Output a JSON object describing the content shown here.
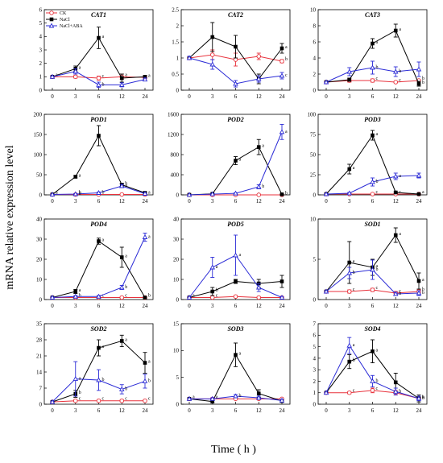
{
  "figure": {
    "ylabel": "mRNA relative expression level",
    "xlabel": "Time ( h )",
    "legend": [
      {
        "name": "CK",
        "color": "#e8323c",
        "marker": "circle-open"
      },
      {
        "name": "NaCl",
        "color": "#000000",
        "marker": "square-filled"
      },
      {
        "name": "NaCl+ABA",
        "color": "#2b2bd6",
        "marker": "triangle-open"
      }
    ]
  },
  "chart_data": [
    {
      "type": "line",
      "title": "CAT1",
      "categories": [
        "0",
        "3",
        "6",
        "12",
        "24"
      ],
      "ylim": [
        0,
        6
      ],
      "yticks": [
        0,
        1,
        2,
        3,
        4,
        5,
        6
      ],
      "series": [
        {
          "name": "CK",
          "values": [
            1,
            1,
            0.9,
            1,
            0.95
          ],
          "errors": [
            0.05,
            0.1,
            0.15,
            0.2,
            0.1
          ],
          "letters": [
            "a",
            "",
            "c",
            "a",
            ""
          ]
        },
        {
          "name": "NaCl",
          "values": [
            1,
            1.6,
            3.9,
            0.9,
            1.0
          ],
          "errors": [
            0.05,
            0.2,
            0.8,
            0.3,
            0.1
          ],
          "letters": [
            "",
            "a",
            "a",
            "",
            "a"
          ]
        },
        {
          "name": "NaCl+ABA",
          "values": [
            1,
            1.4,
            0.4,
            0.4,
            0.8
          ],
          "errors": [
            0.05,
            0.2,
            0.2,
            0.15,
            0.1
          ],
          "letters": [
            "",
            "",
            "b",
            "",
            ""
          ]
        }
      ]
    },
    {
      "type": "line",
      "title": "CAT2",
      "categories": [
        "0",
        "3",
        "6",
        "12",
        "24"
      ],
      "ylim": [
        0,
        2.5
      ],
      "yticks": [
        0,
        0.5,
        1,
        1.5,
        2,
        2.5
      ],
      "series": [
        {
          "name": "CK",
          "values": [
            1,
            1.1,
            0.95,
            1.05,
            0.9
          ],
          "errors": [
            0.05,
            0.15,
            0.2,
            0.1,
            0.05
          ],
          "letters": [
            "",
            "",
            "",
            "",
            "b"
          ]
        },
        {
          "name": "NaCl",
          "values": [
            1,
            1.65,
            1.35,
            0.35,
            1.3
          ],
          "errors": [
            0.05,
            0.45,
            0.35,
            0.15,
            0.15
          ],
          "letters": [
            "",
            "",
            "",
            "",
            "a"
          ]
        },
        {
          "name": "NaCl+ABA",
          "values": [
            1,
            0.8,
            0.2,
            0.35,
            0.45
          ],
          "errors": [
            0.05,
            0.15,
            0.1,
            0.1,
            0.1
          ],
          "letters": [
            "",
            "",
            "",
            "",
            "c"
          ]
        }
      ]
    },
    {
      "type": "line",
      "title": "CAT3",
      "categories": [
        "0",
        "3",
        "6",
        "12",
        "24"
      ],
      "ylim": [
        0,
        10
      ],
      "yticks": [
        0,
        2,
        4,
        6,
        8,
        10
      ],
      "series": [
        {
          "name": "CK",
          "values": [
            1,
            1.2,
            1.2,
            1.0,
            1.2
          ],
          "errors": [
            0.05,
            0.2,
            0.2,
            0.1,
            0.1
          ],
          "letters": [
            "",
            "",
            "c",
            "c",
            "b"
          ]
        },
        {
          "name": "NaCl",
          "values": [
            1,
            1.3,
            5.8,
            7.4,
            0.8
          ],
          "errors": [
            0.05,
            0.2,
            0.6,
            0.8,
            0.3
          ],
          "letters": [
            "",
            "",
            "a",
            "a",
            "b"
          ]
        },
        {
          "name": "NaCl+ABA",
          "values": [
            1,
            2.3,
            2.8,
            2.3,
            2.6
          ],
          "errors": [
            0.05,
            0.5,
            0.8,
            0.6,
            0.9
          ],
          "letters": [
            "",
            "",
            "b",
            "b",
            ""
          ]
        }
      ]
    },
    {
      "type": "line",
      "title": "POD1",
      "categories": [
        "0",
        "3",
        "6",
        "12",
        "24"
      ],
      "ylim": [
        0,
        200
      ],
      "yticks": [
        0,
        50,
        100,
        150,
        200
      ],
      "series": [
        {
          "name": "CK",
          "values": [
            1,
            1,
            1,
            1,
            1
          ],
          "errors": [
            0.5,
            0.5,
            0.5,
            0.5,
            0.5
          ],
          "letters": [
            "a",
            "b",
            "",
            "",
            "a"
          ]
        },
        {
          "name": "NaCl",
          "values": [
            1,
            45,
            147,
            25,
            5
          ],
          "errors": [
            0.5,
            3,
            25,
            4,
            2
          ],
          "letters": [
            "",
            "a",
            "",
            "b",
            ""
          ]
        },
        {
          "name": "NaCl+ABA",
          "values": [
            1,
            2,
            5,
            22,
            3
          ],
          "errors": [
            0.5,
            1,
            2,
            4,
            1
          ],
          "letters": [
            "",
            "b",
            "b",
            "a",
            ""
          ]
        }
      ]
    },
    {
      "type": "line",
      "title": "POD2",
      "categories": [
        "0",
        "3",
        "6",
        "12",
        "24"
      ],
      "ylim": [
        0,
        1600
      ],
      "yticks": [
        0,
        400,
        800,
        1200,
        1600
      ],
      "series": [
        {
          "name": "CK",
          "values": [
            1,
            1,
            1,
            1,
            1
          ],
          "errors": [
            5,
            5,
            5,
            5,
            5
          ],
          "letters": [
            "",
            "",
            "",
            "",
            ""
          ]
        },
        {
          "name": "NaCl",
          "values": [
            1,
            20,
            680,
            950,
            10
          ],
          "errors": [
            5,
            10,
            80,
            150,
            5
          ],
          "letters": [
            "",
            "",
            "a",
            "a",
            "b"
          ]
        },
        {
          "name": "NaCl+ABA",
          "values": [
            1,
            15,
            30,
            160,
            1250
          ],
          "errors": [
            5,
            5,
            10,
            40,
            150
          ],
          "letters": [
            "",
            "",
            "",
            "b",
            "a"
          ]
        }
      ]
    },
    {
      "type": "line",
      "title": "POD3",
      "categories": [
        "0",
        "3",
        "6",
        "12",
        "24"
      ],
      "ylim": [
        0,
        100
      ],
      "yticks": [
        0,
        25,
        50,
        75,
        100
      ],
      "series": [
        {
          "name": "CK",
          "values": [
            1,
            1,
            1,
            1,
            1
          ],
          "errors": [
            0.5,
            0.5,
            0.5,
            0.5,
            0.5
          ],
          "letters": [
            "",
            "",
            "c",
            "c",
            "a"
          ]
        },
        {
          "name": "NaCl",
          "values": [
            1,
            32,
            74,
            3,
            1
          ],
          "errors": [
            0.5,
            6,
            6,
            1,
            0.5
          ],
          "letters": [
            "",
            "a",
            "a",
            "",
            ""
          ]
        },
        {
          "name": "NaCl+ABA",
          "values": [
            1,
            2,
            16,
            23,
            24
          ],
          "errors": [
            0.5,
            1,
            5,
            4,
            3
          ],
          "letters": [
            "",
            "",
            "b",
            "a",
            ""
          ]
        }
      ]
    },
    {
      "type": "line",
      "title": "POD4",
      "categories": [
        "0",
        "3",
        "6",
        "12",
        "24"
      ],
      "ylim": [
        0,
        40
      ],
      "yticks": [
        0,
        10,
        20,
        30,
        40
      ],
      "series": [
        {
          "name": "CK",
          "values": [
            1,
            1,
            1,
            1,
            1
          ],
          "errors": [
            0.3,
            0.3,
            0.3,
            0.3,
            0.3
          ],
          "letters": [
            "",
            "b",
            "c",
            "c",
            "b"
          ]
        },
        {
          "name": "NaCl",
          "values": [
            1,
            4,
            29,
            21,
            1
          ],
          "errors": [
            0.3,
            1,
            1.5,
            5,
            0.5
          ],
          "letters": [
            "",
            "a",
            "a",
            "a",
            ""
          ]
        },
        {
          "name": "NaCl+ABA",
          "values": [
            1,
            1.5,
            1.5,
            6,
            31
          ],
          "errors": [
            0.3,
            0.5,
            0.5,
            1,
            2
          ],
          "letters": [
            "",
            "",
            "",
            "b",
            "a"
          ]
        }
      ]
    },
    {
      "type": "line",
      "title": "POD5",
      "categories": [
        "0",
        "3",
        "6",
        "12",
        "24"
      ],
      "ylim": [
        0,
        40
      ],
      "yticks": [
        0,
        10,
        20,
        30,
        40
      ],
      "series": [
        {
          "name": "CK",
          "values": [
            1,
            1,
            1.5,
            1,
            1
          ],
          "errors": [
            0.3,
            0.3,
            0.5,
            0.3,
            0.3
          ],
          "letters": [
            "a",
            "c",
            "",
            "",
            ""
          ]
        },
        {
          "name": "NaCl",
          "values": [
            1,
            4,
            9,
            8,
            9
          ],
          "errors": [
            0.3,
            2,
            1,
            2,
            3
          ],
          "letters": [
            "",
            "b",
            "",
            "",
            ""
          ]
        },
        {
          "name": "NaCl+ABA",
          "values": [
            1,
            16,
            22,
            6,
            1
          ],
          "errors": [
            0.3,
            5,
            10,
            2,
            0.5
          ],
          "letters": [
            "",
            "a",
            "a",
            "",
            ""
          ]
        }
      ]
    },
    {
      "type": "line",
      "title": "SOD1",
      "categories": [
        "0",
        "3",
        "6",
        "12",
        "24"
      ],
      "ylim": [
        0,
        10
      ],
      "yticks": [
        0,
        5,
        10
      ],
      "series": [
        {
          "name": "CK",
          "values": [
            1,
            1,
            1.2,
            0.8,
            1.0
          ],
          "errors": [
            0.1,
            0.2,
            0.2,
            0.2,
            0.2
          ],
          "letters": [
            "",
            "c",
            "c",
            "c",
            "b"
          ]
        },
        {
          "name": "NaCl",
          "values": [
            1,
            4.6,
            4.0,
            8.0,
            2.3
          ],
          "errors": [
            0.1,
            2.6,
            1.0,
            0.9,
            1.0
          ],
          "letters": [
            "",
            "a",
            "a",
            "a",
            "a"
          ]
        },
        {
          "name": "NaCl+ABA",
          "values": [
            1,
            3.3,
            3.7,
            0.7,
            0.8
          ],
          "errors": [
            0.1,
            0.7,
            1.2,
            0.2,
            0.3
          ],
          "letters": [
            "",
            "b",
            "b",
            "b",
            "b"
          ]
        }
      ]
    },
    {
      "type": "line",
      "title": "SOD2",
      "categories": [
        "0",
        "3",
        "6",
        "12",
        "24"
      ],
      "ylim": [
        0,
        35
      ],
      "yticks": [
        0,
        7,
        14,
        21,
        28,
        35
      ],
      "series": [
        {
          "name": "CK",
          "values": [
            1,
            1.5,
            1.5,
            1.5,
            1.5
          ],
          "errors": [
            0.3,
            0.5,
            0.5,
            0.5,
            0.5
          ],
          "letters": [
            "",
            "c",
            "c",
            "c",
            "c"
          ]
        },
        {
          "name": "NaCl",
          "values": [
            1,
            4.5,
            24.5,
            27.5,
            18
          ],
          "errors": [
            0.3,
            1.5,
            3.5,
            2.5,
            4.5
          ],
          "letters": [
            "",
            "b",
            "a",
            "a",
            "a"
          ]
        },
        {
          "name": "NaCl+ABA",
          "values": [
            1,
            11,
            10.5,
            6.5,
            10
          ],
          "errors": [
            0.3,
            7.5,
            4.5,
            2,
            3
          ],
          "letters": [
            "",
            "a",
            "b",
            "b",
            "b"
          ]
        }
      ]
    },
    {
      "type": "line",
      "title": "SOD3",
      "categories": [
        "0",
        "3",
        "6",
        "12",
        "24"
      ],
      "ylim": [
        0,
        15
      ],
      "yticks": [
        0,
        5,
        10,
        15
      ],
      "series": [
        {
          "name": "CK",
          "values": [
            1,
            1,
            1,
            1,
            1
          ],
          "errors": [
            0.1,
            0.1,
            0.1,
            0.1,
            0.1
          ],
          "letters": [
            "a",
            "a",
            "",
            "",
            ""
          ]
        },
        {
          "name": "NaCl",
          "values": [
            1,
            0.5,
            9.2,
            2,
            0.6
          ],
          "errors": [
            0.1,
            0.2,
            2.2,
            0.7,
            0.2
          ],
          "letters": [
            "",
            "",
            "a",
            "",
            ""
          ]
        },
        {
          "name": "NaCl+ABA",
          "values": [
            1,
            1,
            1.5,
            1.2,
            0.7
          ],
          "errors": [
            0.1,
            0.2,
            0.3,
            0.3,
            0.2
          ],
          "letters": [
            "",
            "",
            "b",
            "",
            ""
          ]
        }
      ]
    },
    {
      "type": "line",
      "title": "SOD4",
      "categories": [
        "0",
        "3",
        "6",
        "12",
        "24"
      ],
      "ylim": [
        0,
        7
      ],
      "yticks": [
        0,
        1,
        2,
        3,
        4,
        5,
        6,
        7
      ],
      "series": [
        {
          "name": "CK",
          "values": [
            1,
            1,
            1.2,
            1,
            0.5
          ],
          "errors": [
            0.05,
            0.1,
            0.2,
            0.2,
            0.1
          ],
          "letters": [
            "",
            "c",
            "c",
            "",
            "a"
          ]
        },
        {
          "name": "NaCl",
          "values": [
            1,
            3.7,
            4.6,
            1.9,
            0.5
          ],
          "errors": [
            0.05,
            0.6,
            1.0,
            0.8,
            0.3
          ],
          "letters": [
            "",
            "b",
            "a",
            "",
            "b"
          ]
        },
        {
          "name": "NaCl+ABA",
          "values": [
            1,
            5.1,
            2.0,
            1.1,
            0.5
          ],
          "errors": [
            0.05,
            0.7,
            0.5,
            0.3,
            0.2
          ],
          "letters": [
            "",
            "a",
            "b",
            "b",
            "b"
          ]
        }
      ]
    }
  ]
}
